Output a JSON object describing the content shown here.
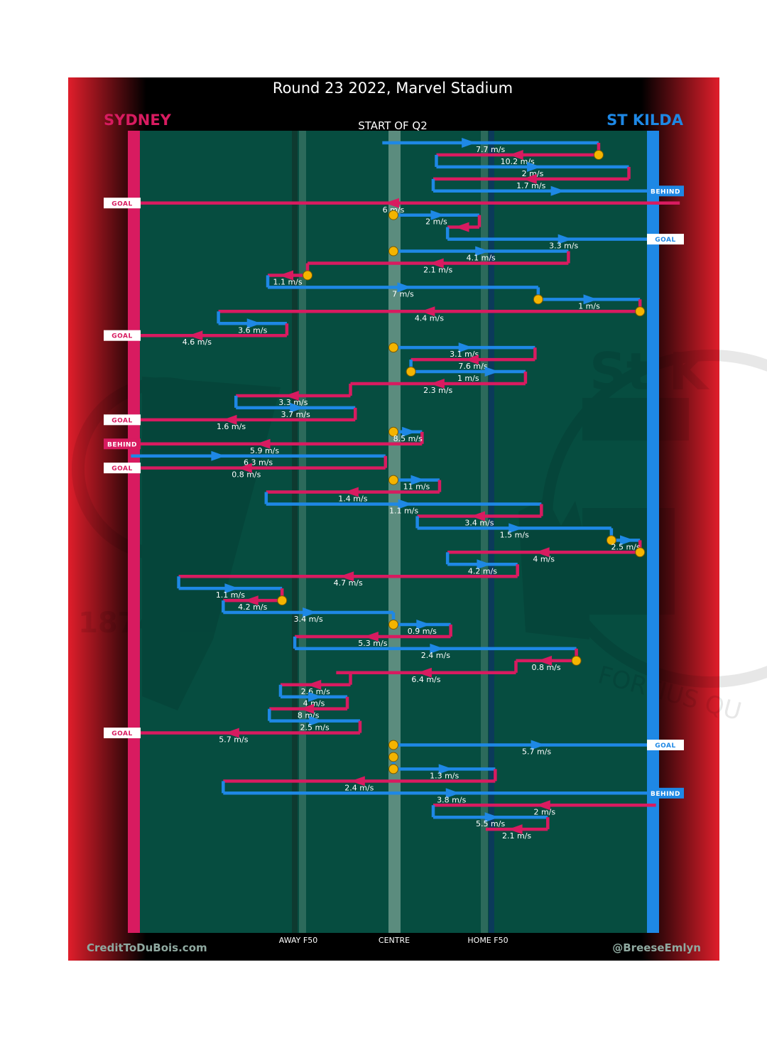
{
  "title": "Round 23 2022, Marvel Stadium",
  "subtitle": "START OF Q2",
  "teams": {
    "away": {
      "name": "SYDNEY",
      "color": "#d81b60"
    },
    "home": {
      "name": "ST KILDA",
      "color": "#1e88e5"
    }
  },
  "colors": {
    "field": "#064d40",
    "frame": "#000000",
    "possession_start": "#f4b400",
    "side_gradient": "#e01e2b"
  },
  "axis_labels": {
    "away_f50": "AWAY F50",
    "centre": "CENTRE",
    "home_f50": "HOME F50"
  },
  "credits": {
    "left": "CreditToDuBois.com",
    "right": "@BreeseEmlyn"
  },
  "watermark": {
    "left_year": "1874",
    "right_club": "St K",
    "right_motto": "FORTIUS QU"
  },
  "chart_data": {
    "type": "line",
    "title": "Round 23 2022, Marvel Stadium",
    "subtitle": "START OF Q2",
    "x_axis": {
      "range": [
        -1,
        1
      ],
      "ticks": [
        {
          "value": -0.6,
          "label": "AWAY F50"
        },
        {
          "value": 0,
          "label": "CENTRE"
        },
        {
          "value": 0.6,
          "label": "HOME F50"
        }
      ]
    },
    "legend": [
      {
        "team": "SYDNEY",
        "color": "#d81b60",
        "side": "left"
      },
      {
        "team": "ST KILDA",
        "color": "#1e88e5",
        "side": "right"
      }
    ],
    "chains": [
      {
        "team": "stk",
        "points": [
          -0.07,
          1.0,
          1.15,
          1.29
        ],
        "speed": "7.7 m/s",
        "start_marker": false
      },
      {
        "team": "syd",
        "points": [
          1.29,
          0.27
        ],
        "speed": "10.2 m/s",
        "start_marker": true
      },
      {
        "team": "stk",
        "points": [
          0.27,
          1.48
        ],
        "speed": "2 m/s",
        "start_marker": false
      },
      {
        "team": "syd",
        "points": [
          1.48,
          0.25
        ],
        "speed": "1.7 m/s",
        "start_marker": false
      },
      {
        "team": "stk",
        "points": [
          0.25,
          1.8
        ],
        "speed": "",
        "start_marker": false,
        "outcome": "BEHIND"
      },
      {
        "team": "syd",
        "points": [
          1.8,
          -1.8
        ],
        "speed": "6 m/s",
        "start_marker": false,
        "outcome": "GOAL"
      },
      {
        "team": "stk",
        "points": [
          0.0,
          0.54
        ],
        "speed": "2 m/s",
        "start_marker": true
      },
      {
        "team": "syd",
        "points": [
          0.54,
          0.34
        ],
        "speed": "",
        "start_marker": false
      },
      {
        "team": "stk",
        "points": [
          0.34,
          1.8
        ],
        "speed": "3.3 m/s",
        "start_marker": false,
        "outcome": "GOAL"
      },
      {
        "team": "stk",
        "points": [
          0.0,
          1.1
        ],
        "speed": "4.1 m/s",
        "start_marker": true
      },
      {
        "team": "syd",
        "points": [
          1.1,
          -0.54
        ],
        "speed": "2.1 m/s",
        "start_marker": false
      },
      {
        "team": "syd",
        "points": [
          -0.54,
          -0.79
        ],
        "speed": "1.1 m/s",
        "start_marker": true
      },
      {
        "team": "stk",
        "points": [
          -0.79,
          0.91
        ],
        "speed": "7 m/s",
        "start_marker": false
      },
      {
        "team": "stk",
        "points": [
          0.91,
          1.55
        ],
        "speed": "1 m/s",
        "start_marker": true
      },
      {
        "team": "syd",
        "points": [
          1.55,
          -1.1
        ],
        "speed": "4.4 m/s",
        "start_marker": true
      },
      {
        "team": "stk",
        "points": [
          -1.1,
          -0.67
        ],
        "speed": "3.6 m/s",
        "start_marker": false
      },
      {
        "team": "syd",
        "points": [
          -0.67,
          -1.8
        ],
        "speed": "4.6 m/s",
        "start_marker": false,
        "outcome": "GOAL"
      },
      {
        "team": "stk",
        "points": [
          0.0,
          0.89
        ],
        "speed": "3.1 m/s",
        "start_marker": true
      },
      {
        "team": "syd",
        "points": [
          0.89,
          0.11
        ],
        "speed": "7.6 m/s",
        "start_marker": false
      },
      {
        "team": "stk",
        "points": [
          0.11,
          0.39,
          0.83
        ],
        "speed": "1 m/s",
        "start_marker": true
      },
      {
        "team": "syd",
        "points": [
          0.83,
          -0.26,
          -0.27
        ],
        "speed": "2.3 m/s",
        "start_marker": false
      },
      {
        "team": "syd",
        "points": [
          -0.27,
          -0.99
        ],
        "speed": "3.3 m/s",
        "start_marker": false
      },
      {
        "team": "stk",
        "points": [
          -0.99,
          -0.24
        ],
        "speed": "3.7 m/s",
        "start_marker": false
      },
      {
        "team": "syd",
        "points": [
          -0.24,
          -1.8
        ],
        "speed": "1.6 m/s",
        "start_marker": false,
        "outcome": "GOAL"
      },
      {
        "team": "stk",
        "points": [
          0.0,
          0.18
        ],
        "speed": "8.5 m/s",
        "start_marker": true
      },
      {
        "team": "syd",
        "points": [
          0.18,
          -1.8
        ],
        "speed": "5.9 m/s",
        "start_marker": false,
        "outcome": "BEHIND"
      },
      {
        "team": "stk",
        "points": [
          -1.65,
          -0.57,
          -0.51,
          -0.05
        ],
        "speed": "6.3 m/s",
        "start_marker": false
      },
      {
        "team": "syd",
        "points": [
          -0.05,
          -1.8
        ],
        "speed": "0.8 m/s",
        "start_marker": false,
        "outcome": "GOAL"
      },
      {
        "team": "stk",
        "points": [
          0.0,
          0.29
        ],
        "speed": "11 m/s",
        "start_marker": true
      },
      {
        "team": "syd",
        "points": [
          0.29,
          -0.8
        ],
        "speed": "1.4 m/s",
        "start_marker": false
      },
      {
        "team": "stk",
        "points": [
          -0.8,
          0.93
        ],
        "speed": "1.1 m/s",
        "start_marker": false
      },
      {
        "team": "syd",
        "points": [
          0.93,
          0.15
        ],
        "speed": "3.4 m/s",
        "start_marker": false
      },
      {
        "team": "stk",
        "points": [
          0.15,
          1.37
        ],
        "speed": "1.5 m/s",
        "start_marker": false
      },
      {
        "team": "stk",
        "points": [
          1.37,
          1.55
        ],
        "speed": "2.5 m/s",
        "start_marker": true
      },
      {
        "team": "syd",
        "points": [
          1.55,
          0.34
        ],
        "speed": "4 m/s",
        "start_marker": true
      },
      {
        "team": "stk",
        "points": [
          0.34,
          0.78
        ],
        "speed": "4.2 m/s",
        "start_marker": false
      },
      {
        "team": "syd",
        "points": [
          0.78,
          -1.35
        ],
        "speed": "4.7 m/s",
        "start_marker": false
      },
      {
        "team": "stk",
        "points": [
          -1.35,
          -0.7
        ],
        "speed": "1.1 m/s",
        "start_marker": false
      },
      {
        "team": "syd",
        "points": [
          -0.7,
          -1.07
        ],
        "speed": "4.2 m/s",
        "start_marker": true
      },
      {
        "team": "stk",
        "points": [
          -1.07,
          0.0
        ],
        "speed": "3.4 m/s",
        "start_marker": false
      },
      {
        "team": "stk",
        "points": [
          0.0,
          0.36
        ],
        "speed": "0.9 m/s",
        "start_marker": true
      },
      {
        "team": "syd",
        "points": [
          0.36,
          -0.62
        ],
        "speed": "5.3 m/s",
        "start_marker": false
      },
      {
        "team": "stk",
        "points": [
          -0.62,
          1.15
        ],
        "speed": "2.4 m/s",
        "start_marker": false
      },
      {
        "team": "syd",
        "points": [
          1.15,
          0.77
        ],
        "speed": "0.8 m/s",
        "start_marker": true
      },
      {
        "team": "syd",
        "points": [
          0.77,
          -0.36,
          -0.27
        ],
        "speed": "6.4 m/s",
        "start_marker": false
      },
      {
        "team": "syd",
        "points": [
          -0.27,
          -0.71
        ],
        "speed": "2.6 m/s",
        "start_marker": false
      },
      {
        "team": "stk",
        "points": [
          -0.71,
          -0.29
        ],
        "speed": "4 m/s",
        "start_marker": false
      },
      {
        "team": "syd",
        "points": [
          -0.29,
          -0.78
        ],
        "speed": "8 m/s",
        "start_marker": false
      },
      {
        "team": "stk",
        "points": [
          -0.78,
          -0.21
        ],
        "speed": "2.5 m/s",
        "start_marker": false
      },
      {
        "team": "syd",
        "points": [
          -0.21,
          -1.8
        ],
        "speed": "5.7 m/s",
        "start_marker": false,
        "outcome": "GOAL"
      },
      {
        "team": "stk",
        "points": [
          0.0,
          1.8
        ],
        "speed": "5.7 m/s",
        "start_marker": true,
        "outcome": "GOAL"
      },
      {
        "team": "stk",
        "points": [
          0.0,
          0.0
        ],
        "speed": "",
        "start_marker": true
      },
      {
        "team": "stk",
        "points": [
          0.0,
          0.64
        ],
        "speed": "1.3 m/s",
        "start_marker": true
      },
      {
        "team": "syd",
        "points": [
          0.64,
          -1.07
        ],
        "speed": "2.4 m/s",
        "start_marker": false
      },
      {
        "team": "stk",
        "points": [
          -1.07,
          1.8
        ],
        "speed": "3.8 m/s",
        "start_marker": false,
        "outcome": "BEHIND"
      },
      {
        "team": "syd",
        "points": [
          1.65,
          0.25
        ],
        "speed": "2 m/s",
        "start_marker": false
      },
      {
        "team": "stk",
        "points": [
          0.25,
          0.97
        ],
        "speed": "5.5 m/s",
        "start_marker": false
      },
      {
        "team": "syd",
        "points": [
          0.97,
          0.58
        ],
        "speed": "2.1 m/s",
        "start_marker": false
      }
    ]
  }
}
